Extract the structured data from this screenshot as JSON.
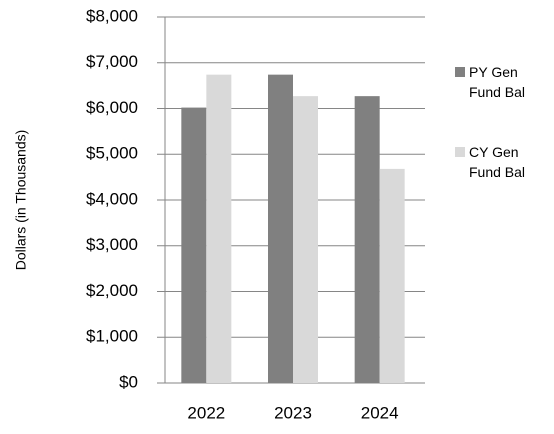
{
  "chart_data": {
    "type": "bar",
    "y_label": "Dollars (in Thousands)",
    "categories": [
      "2022",
      "2023",
      "2024"
    ],
    "series": [
      {
        "name": "PY Gen Fund Bal",
        "color": "#808080",
        "values": [
          6020,
          6740,
          6270
        ]
      },
      {
        "name": "CY Gen Fund Bal",
        "color": "#d9d9d9",
        "values": [
          6740,
          6270,
          4680
        ]
      }
    ],
    "ylim": [
      0,
      8000
    ],
    "yticks": [
      {
        "value": 0,
        "label": "$0"
      },
      {
        "value": 1000,
        "label": "$1,000"
      },
      {
        "value": 2000,
        "label": "$2,000"
      },
      {
        "value": 3000,
        "label": "$3,000"
      },
      {
        "value": 4000,
        "label": "$4,000"
      },
      {
        "value": 5000,
        "label": "$5,000"
      },
      {
        "value": 6000,
        "label": "$6,000"
      },
      {
        "value": 7000,
        "label": "$7,000"
      },
      {
        "value": 8000,
        "label": "$8,000"
      }
    ],
    "grid": true
  }
}
